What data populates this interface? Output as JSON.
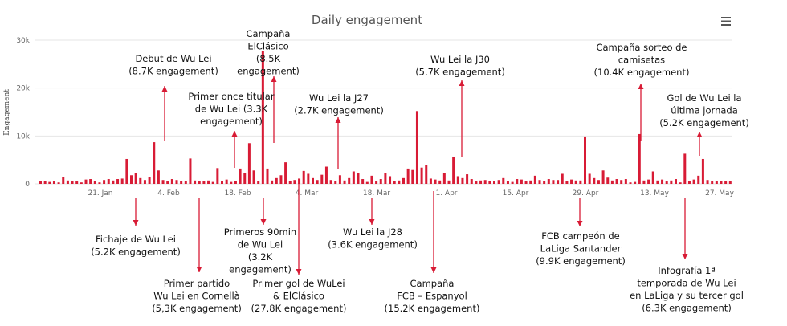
{
  "chart_data": {
    "type": "bar",
    "title": "Daily engagement",
    "ylabel": "Engagement",
    "ylim": [
      0,
      30000
    ],
    "y_ticks": [
      "0",
      "10k",
      "20k",
      "30k"
    ],
    "x_ticks": [
      "21. Jan",
      "4. Feb",
      "18. Feb",
      "4. Mar",
      "18. Mar",
      "1. Apr",
      "15. Apr",
      "29. Apr",
      "13. May",
      "27. May"
    ],
    "grid": true,
    "bar_color": "#d81b35",
    "values": [
      500,
      600,
      400,
      500,
      300,
      1400,
      700,
      500,
      500,
      300,
      900,
      1000,
      600,
      300,
      800,
      1000,
      700,
      1000,
      1100,
      5200,
      1800,
      2200,
      1200,
      800,
      1500,
      8700,
      2800,
      800,
      500,
      1000,
      800,
      600,
      600,
      5300,
      700,
      500,
      500,
      700,
      400,
      3300,
      600,
      900,
      400,
      600,
      3200,
      2200,
      8500,
      2800,
      600,
      27800,
      3200,
      700,
      1200,
      1800,
      4500,
      600,
      800,
      1100,
      2700,
      2100,
      1200,
      800,
      1900,
      3600,
      800,
      600,
      1800,
      700,
      1200,
      2600,
      2300,
      1000,
      400,
      1700,
      500,
      1000,
      2200,
      1600,
      600,
      700,
      1200,
      3200,
      2900,
      15200,
      3400,
      3900,
      1100,
      900,
      700,
      2300,
      700,
      5700,
      1600,
      1200,
      2000,
      1000,
      500,
      700,
      800,
      600,
      500,
      800,
      1200,
      600,
      400,
      1000,
      900,
      500,
      700,
      1700,
      800,
      600,
      1000,
      800,
      800,
      2100,
      600,
      900,
      700,
      700,
      9900,
      2100,
      1200,
      800,
      2800,
      1300,
      700,
      1000,
      800,
      1000,
      300,
      400,
      10400,
      700,
      900,
      2600,
      700,
      900,
      500,
      700,
      1000,
      300,
      6300,
      600,
      900,
      1700,
      5200,
      800,
      600,
      600,
      600,
      500,
      500
    ],
    "annotations": [
      {
        "lines": [
          "Debut  de Wu Lei",
          "(8.7K engagement)"
        ]
      },
      {
        "lines": [
          "Campaña",
          "ElClásico",
          "(8.5K",
          "engagement)"
        ]
      },
      {
        "lines": [
          "Primer once titular",
          "de Wu Lei (3.3K",
          "engagement)"
        ]
      },
      {
        "lines": [
          "Wu Lei la J27",
          "(2.7K engagement)"
        ]
      },
      {
        "lines": [
          "Wu Lei la J30",
          "(5.7K engagement)"
        ]
      },
      {
        "lines": [
          "Campaña sorteo de",
          "camisetas",
          "(10.4K engagement)"
        ]
      },
      {
        "lines": [
          "Gol de Wu Lei la",
          "última jornada",
          "(5.2K engagement)"
        ]
      },
      {
        "lines": [
          "Fichaje de Wu Lei",
          "(5.2K engagement)"
        ]
      },
      {
        "lines": [
          "Primer partido",
          "Wu Lei en Cornellà",
          "(5,3K engagement)"
        ]
      },
      {
        "lines": [
          "Primeros 90min",
          "de Wu Lei",
          "(3.2K",
          "engagement)"
        ]
      },
      {
        "lines": [
          "Primer gol de WuLei",
          "& ElClásico",
          "(27.8K engagement)"
        ]
      },
      {
        "lines": [
          "Wu Lei la J28",
          "(3.6K engagement)"
        ]
      },
      {
        "lines": [
          "Campaña",
          "FCB – Espanyol",
          "(15.2K engagement)"
        ]
      },
      {
        "lines": [
          "FCB campeón de",
          "LaLiga Santander",
          "(9.9K engagement)"
        ]
      },
      {
        "lines": [
          "Infografía 1ª",
          "temporada de Wu Lei",
          "en LaLiga y su tercer gol",
          "(6.3K engagement)"
        ]
      }
    ]
  },
  "menu_icon": "hamburger-menu-icon"
}
